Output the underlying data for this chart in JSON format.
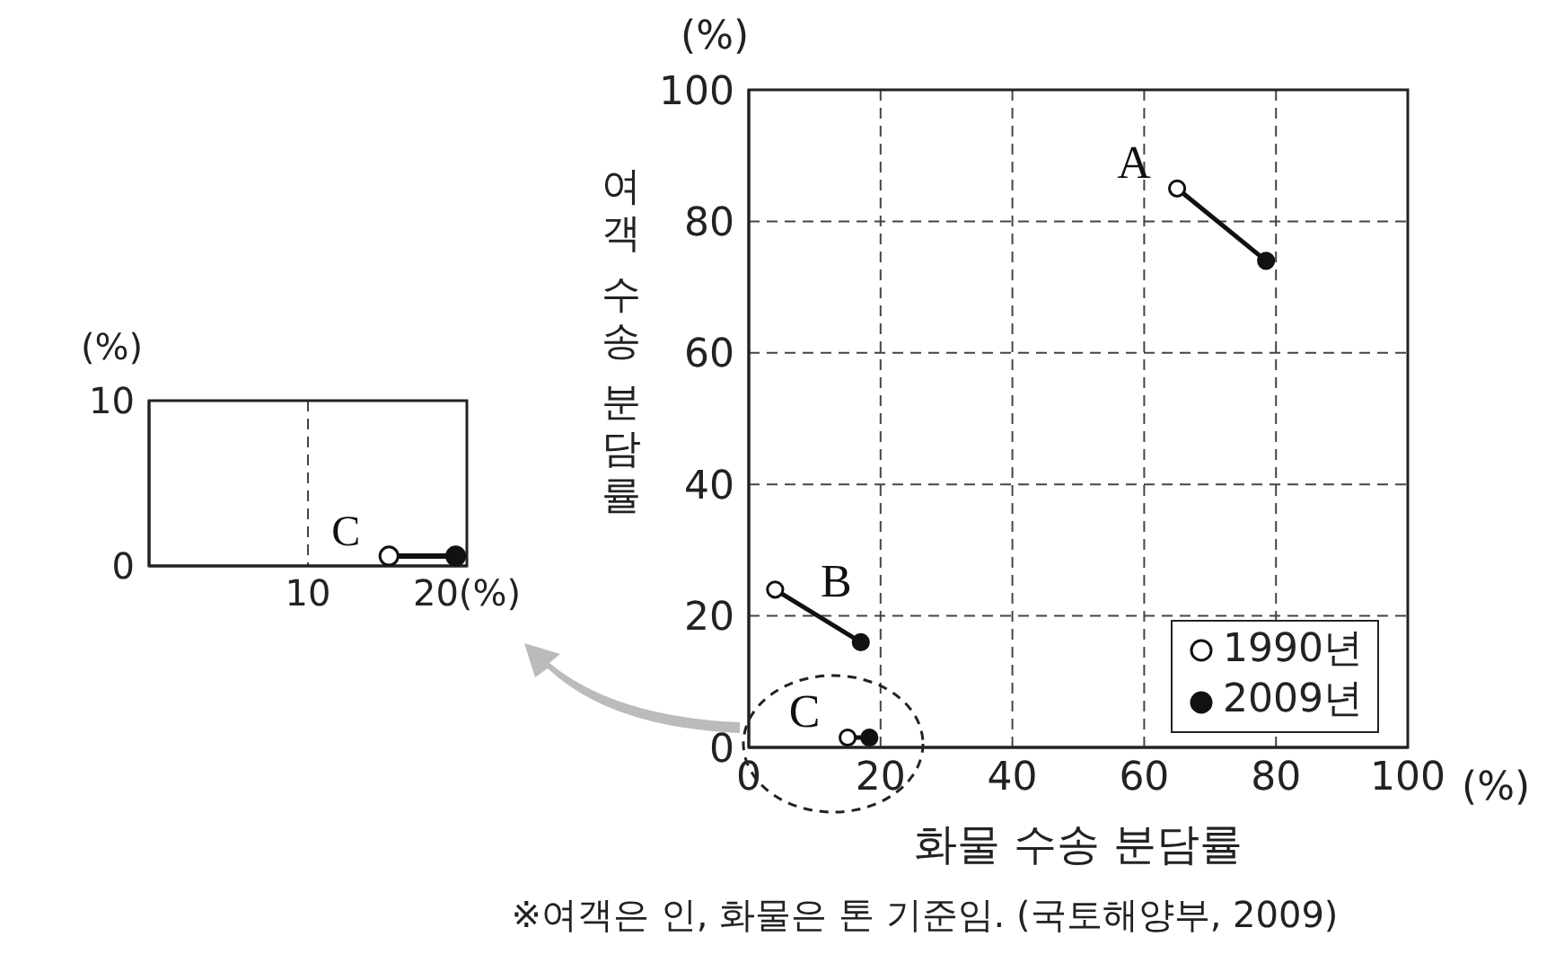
{
  "chart_data": [
    {
      "type": "scatter",
      "xlabel": "화물 수송 분담률",
      "ylabel": "여객 수송 분담률",
      "xlim": [
        0,
        100
      ],
      "ylim": [
        0,
        100
      ],
      "xticks": [
        0,
        20,
        40,
        60,
        80,
        100
      ],
      "yticks": [
        0,
        20,
        40,
        60,
        80,
        100
      ],
      "grid": true,
      "legend": "bottom right",
      "series": [
        {
          "type": "line",
          "name": "A",
          "color": "#111111",
          "x": [
            65,
            78.5
          ],
          "values": [
            85,
            74
          ]
        },
        {
          "type": "line",
          "name": "B",
          "color": "#111111",
          "x": [
            4,
            17
          ],
          "values": [
            24,
            16
          ]
        },
        {
          "type": "line",
          "name": "C",
          "color": "#111111",
          "x": [
            15,
            18.3
          ],
          "values": [
            1.5,
            1.5
          ]
        },
        {
          "type": "scatter",
          "name": "1990년",
          "color": "#ffffff",
          "marker": "circle",
          "x": [
            65,
            4,
            15
          ],
          "values": [
            85,
            24,
            1.5
          ]
        },
        {
          "type": "scatter",
          "name": "2009년",
          "color": "#111111",
          "marker": "circle",
          "x": [
            78.5,
            17,
            18.3
          ],
          "values": [
            74,
            16,
            1.5
          ]
        }
      ],
      "annotations": [
        "(%)",
        "(%)",
        "※여객은 인, 화물은 톤 기준임. (국토해양부, 2009)"
      ]
    },
    {
      "type": "scatter",
      "xlim": [
        0,
        20
      ],
      "ylim": [
        0,
        10
      ],
      "xticks": [
        {
          "value": 10,
          "label": "10"
        },
        {
          "value": 20,
          "label": "20(%)"
        }
      ],
      "yticks": [
        0,
        10
      ],
      "grid": "x",
      "series": [
        {
          "type": "line",
          "name": "C",
          "color": "#111111",
          "x": [
            15.1,
            19.3
          ],
          "values": [
            0.6,
            0.6
          ]
        },
        {
          "type": "scatter",
          "color": "#ffffff",
          "marker": "circle",
          "x": [
            15.1
          ],
          "values": [
            0.6
          ]
        },
        {
          "type": "scatter",
          "color": "#111111",
          "marker": "circle",
          "x": [
            19.3
          ],
          "values": [
            0.6
          ]
        }
      ],
      "annotations": [
        "(%)"
      ]
    }
  ]
}
